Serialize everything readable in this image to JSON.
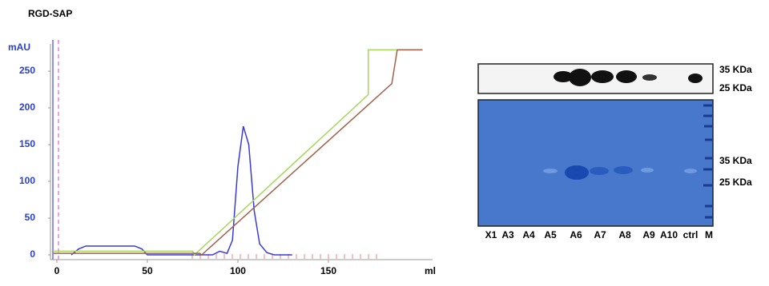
{
  "chart_data": {
    "type": "line",
    "title": "RGD-SAP",
    "ylabel": "mAU",
    "xlabel": "ml",
    "xlim": [
      -3.5,
      207.5
    ],
    "ylim": [
      -6.5,
      287
    ],
    "xticks": [
      0,
      50,
      100,
      150
    ],
    "yticks": [
      0,
      50,
      100,
      150,
      200,
      250
    ],
    "series": [
      {
        "color": "#3a3adc",
        "x": [
          8,
          12,
          16,
          25,
          35,
          43,
          47,
          50,
          80,
          86,
          90,
          94,
          97,
          100,
          103,
          106,
          109,
          112,
          116,
          120,
          130
        ],
        "values": [
          0,
          8,
          12,
          12,
          12,
          12,
          8,
          0,
          0,
          0,
          5,
          2,
          20,
          120,
          175,
          150,
          60,
          15,
          3,
          0,
          0
        ]
      },
      {
        "color": "#a6d65a",
        "x": [
          -2,
          75,
          76,
          172,
          172,
          202
        ],
        "values": [
          5,
          5,
          0,
          218,
          279,
          279
        ]
      },
      {
        "color": "#a0624a",
        "x": [
          -2,
          79,
          80,
          185,
          188,
          202
        ],
        "values": [
          2,
          2,
          0,
          233,
          279,
          279
        ]
      }
    ]
  },
  "gel": {
    "blot_markers": [
      "35 KDa",
      "25 KDa"
    ],
    "gel_markers": [
      "35 KDa",
      "25 KDa"
    ],
    "lanes": [
      "X1",
      "A3",
      "A4",
      "A5",
      "A6",
      "A7",
      "A8",
      "A9",
      "A10",
      "ctrl",
      "M"
    ]
  }
}
